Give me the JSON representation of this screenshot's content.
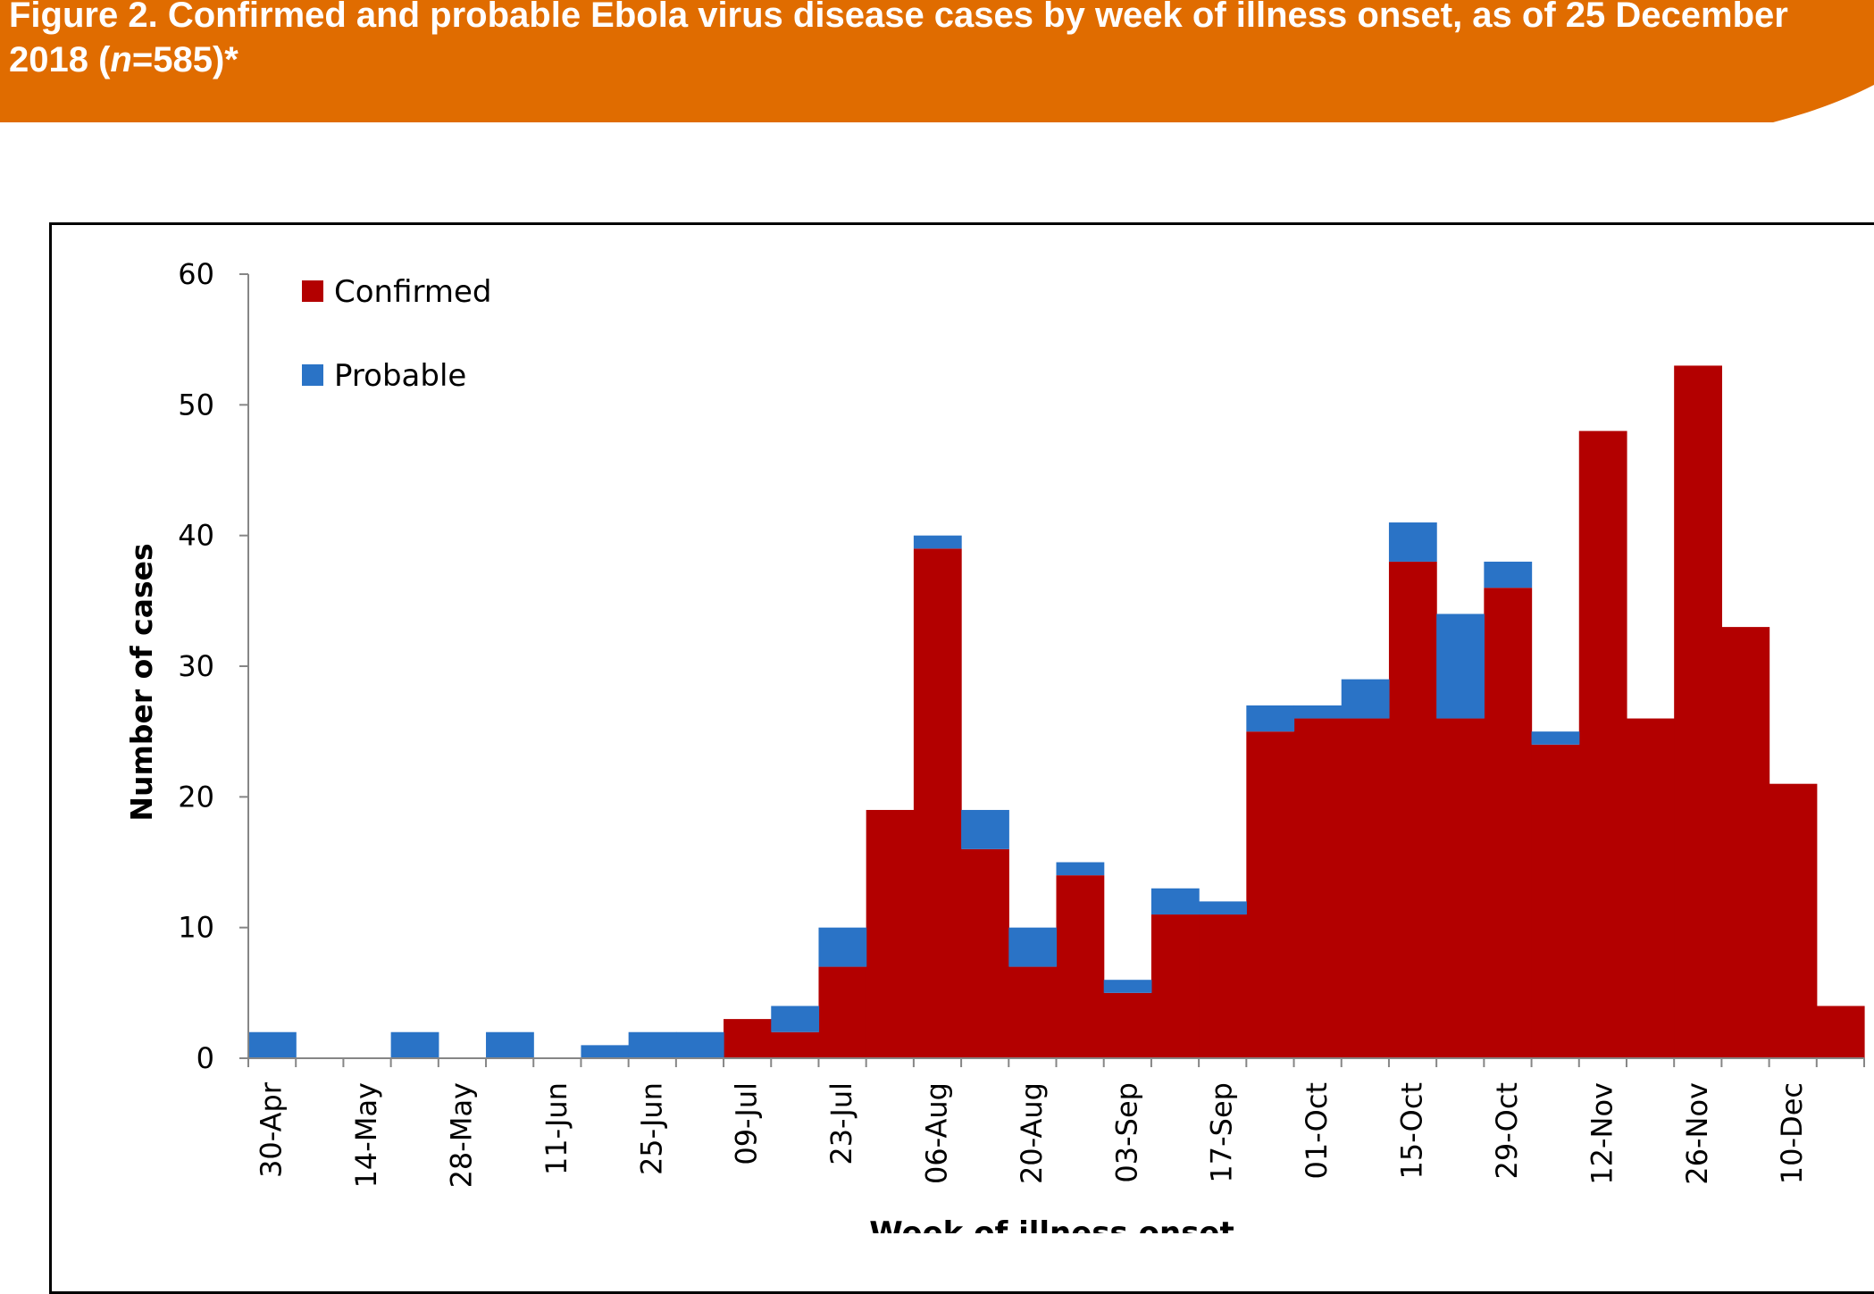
{
  "figure": {
    "title_prefix": "Figure 2. Confirmed and probable Ebola virus disease cases by week of illness onset, as of 25 December 2018 (",
    "title_n": "n",
    "title_suffix": "=585)*"
  },
  "colors": {
    "banner": "#E06C00",
    "confirmed": "#B30000",
    "probable": "#2A73C6"
  },
  "chart_data": {
    "type": "bar",
    "stacked": true,
    "xlabel": "Week of illness onset",
    "ylabel": "Number of cases",
    "ylim": [
      0,
      60
    ],
    "yticks": [
      0,
      10,
      20,
      30,
      40,
      50,
      60
    ],
    "grid": false,
    "legend_position": "top-left",
    "x_tick_labels": [
      "30-Apr",
      "14-May",
      "28-May",
      "11-Jun",
      "25-Jun",
      "09-Jul",
      "23-Jul",
      "06-Aug",
      "20-Aug",
      "03-Sep",
      "17-Sep",
      "01-Oct",
      "15-Oct",
      "29-Oct",
      "12-Nov",
      "26-Nov",
      "10-Dec"
    ],
    "categories": [
      "30-Apr",
      "07-May",
      "14-May",
      "21-May",
      "28-May",
      "04-Jun",
      "11-Jun",
      "18-Jun",
      "25-Jun",
      "02-Jul",
      "09-Jul",
      "16-Jul",
      "23-Jul",
      "30-Jul",
      "06-Aug",
      "13-Aug",
      "20-Aug",
      "27-Aug",
      "03-Sep",
      "10-Sep",
      "17-Sep",
      "24-Sep",
      "01-Oct",
      "08-Oct",
      "15-Oct",
      "22-Oct",
      "29-Oct",
      "05-Nov",
      "12-Nov",
      "19-Nov",
      "26-Nov",
      "03-Dec",
      "10-Dec",
      "17-Dec"
    ],
    "series": [
      {
        "name": "Confirmed",
        "values": [
          0,
          0,
          0,
          0,
          0,
          0,
          0,
          0,
          0,
          0,
          3,
          2,
          7,
          19,
          39,
          16,
          7,
          14,
          5,
          11,
          11,
          25,
          26,
          26,
          38,
          26,
          36,
          24,
          48,
          26,
          53,
          33,
          21,
          4
        ]
      },
      {
        "name": "Probable",
        "values": [
          2,
          0,
          0,
          2,
          0,
          2,
          0,
          1,
          2,
          2,
          0,
          2,
          3,
          0,
          1,
          3,
          3,
          1,
          1,
          2,
          1,
          2,
          1,
          3,
          3,
          8,
          2,
          1,
          0,
          0,
          0,
          0,
          0,
          0
        ]
      }
    ]
  }
}
